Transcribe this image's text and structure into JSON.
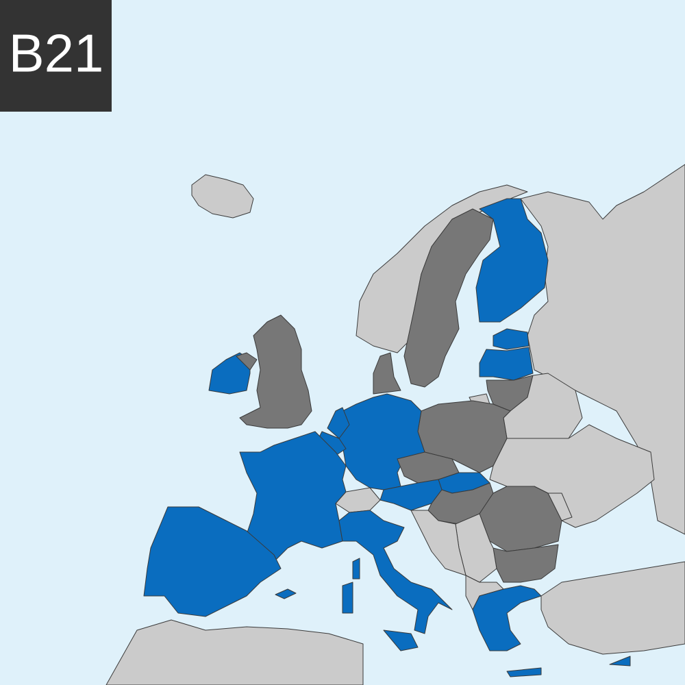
{
  "badge": {
    "label": "B21"
  }
}
